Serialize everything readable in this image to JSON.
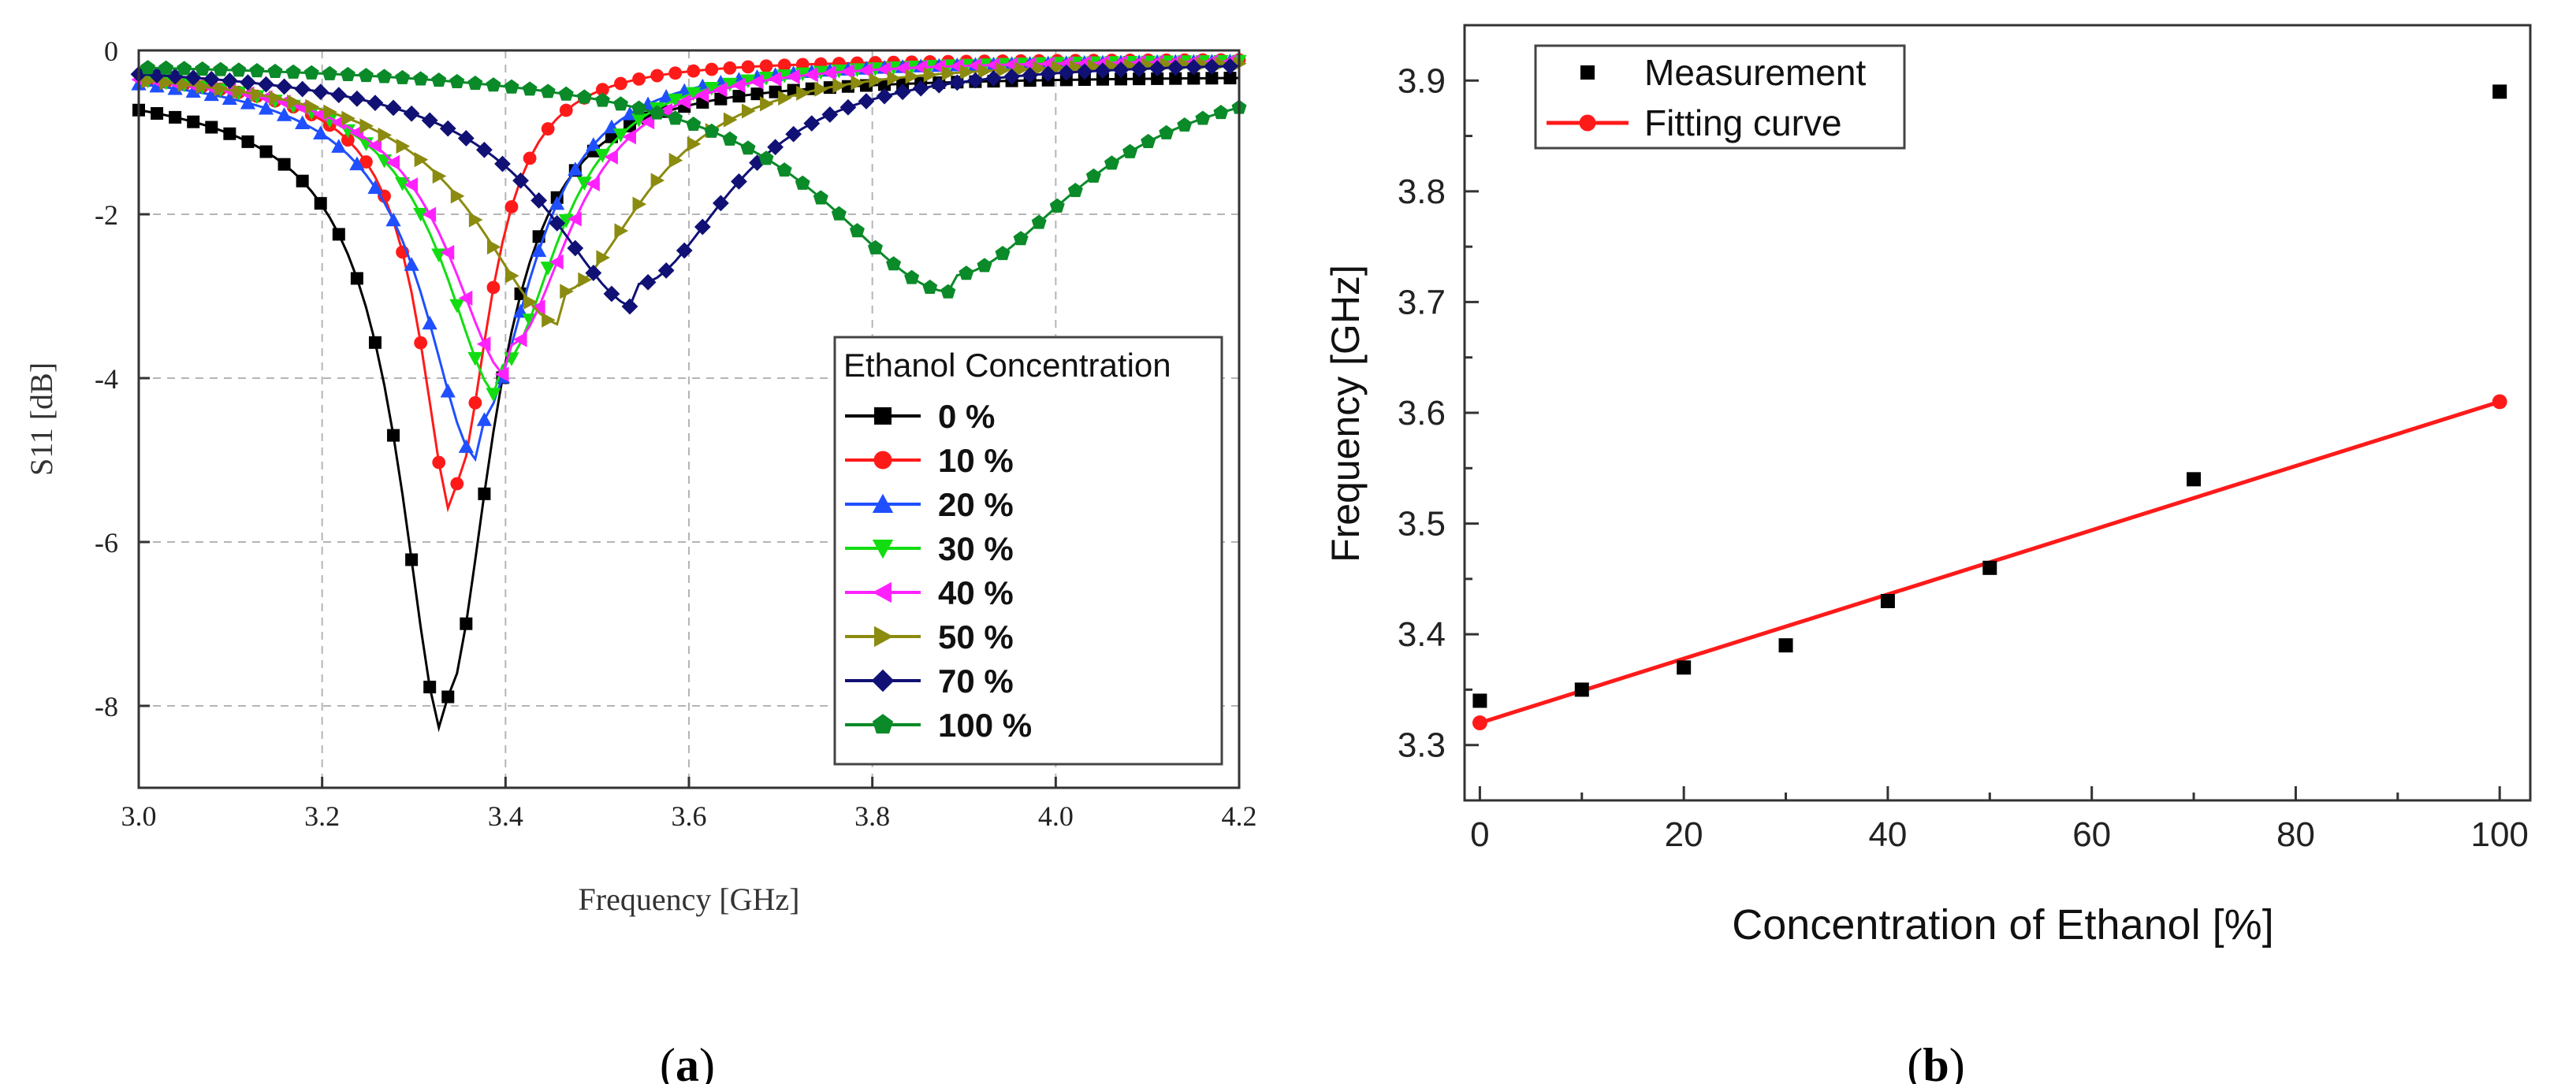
{
  "chart_data": [
    {
      "type": "line",
      "panel_label": "a",
      "title": "",
      "xlabel": "Frequency [GHz]",
      "ylabel": "S11 [dB]",
      "xlim": [
        3.0,
        4.2
      ],
      "ylim": [
        -9,
        0
      ],
      "xticks": [
        3.0,
        3.2,
        3.4,
        3.6,
        3.8,
        4.0,
        4.2
      ],
      "xtick_labels": [
        "3.0",
        "3.2",
        "3.4",
        "3.6",
        "3.8",
        "4.0",
        "4.2"
      ],
      "yticks": [
        0,
        -2,
        -4,
        -6,
        -8
      ],
      "ytick_labels": [
        "0",
        "-2",
        "-4",
        "-6",
        "-8"
      ],
      "grid": true,
      "legend_title": "Ethanol Concentration",
      "legend_position": "lower-right",
      "series": [
        {
          "name": "0 %",
          "color": "#000000",
          "marker": "square",
          "f0": 3.335,
          "dip": -7.9,
          "width": 0.06,
          "base": -0.3,
          "tail": 0.5
        },
        {
          "name": "10 %",
          "color": "#ff1a1a",
          "marker": "circle",
          "f0": 3.345,
          "dip": -5.3,
          "width": 0.045,
          "base": -0.1,
          "tail": 0.45
        },
        {
          "name": "20 %",
          "color": "#1f4fff",
          "marker": "triangle-up",
          "f0": 3.37,
          "dip": -4.55,
          "width": 0.07,
          "base": -0.1,
          "tail": 0.45
        },
        {
          "name": "30 %",
          "color": "#11dd11",
          "marker": "triangle-down",
          "f0": 3.395,
          "dip": -3.85,
          "width": 0.075,
          "base": -0.1,
          "tail": 0.4
        },
        {
          "name": "40 %",
          "color": "#ff22ff",
          "marker": "triangle-left",
          "f0": 3.405,
          "dip": -3.6,
          "width": 0.08,
          "base": -0.1,
          "tail": 0.4
        },
        {
          "name": "50 %",
          "color": "#8b8b10",
          "marker": "triangle-right",
          "f0": 3.46,
          "dip": -2.95,
          "width": 0.11,
          "base": -0.1,
          "tail": 0.4
        },
        {
          "name": "70 %",
          "color": "#101075",
          "marker": "diamond",
          "f0": 3.545,
          "dip": -2.85,
          "width": 0.12,
          "base": -0.1,
          "tail": 0.3
        },
        {
          "name": "100 %",
          "color": "#0a8a28",
          "marker": "pentagon",
          "f0": 3.885,
          "dip": -2.75,
          "width": 0.17,
          "base": -0.1,
          "tail": 0.2
        }
      ]
    },
    {
      "type": "scatter",
      "panel_label": "b",
      "title": "",
      "xlabel": "Concentration of Ethanol [%]",
      "ylabel": "Frequency [GHz]",
      "xlim": [
        -1.5,
        103
      ],
      "ylim": [
        3.25,
        3.95
      ],
      "xticks": [
        0,
        20,
        40,
        60,
        80,
        100
      ],
      "xtick_labels": [
        "0",
        "20",
        "40",
        "60",
        "80",
        "100"
      ],
      "yticks": [
        3.3,
        3.4,
        3.5,
        3.6,
        3.7,
        3.8,
        3.9
      ],
      "ytick_labels": [
        "3.3",
        "3.4",
        "3.5",
        "3.6",
        "3.7",
        "3.8",
        "3.9"
      ],
      "grid": false,
      "legend_position": "top-left",
      "series": [
        {
          "name": "Measurement",
          "color": "#000000",
          "marker": "square",
          "x": [
            0,
            10,
            20,
            30,
            40,
            50,
            70,
            100
          ],
          "y": [
            3.34,
            3.35,
            3.37,
            3.39,
            3.43,
            3.46,
            3.54,
            3.89
          ]
        },
        {
          "name": "Fitting curve",
          "color": "#ff1a1a",
          "marker": "circle",
          "x": [
            0,
            100
          ],
          "y": [
            3.32,
            3.61
          ]
        }
      ]
    }
  ]
}
